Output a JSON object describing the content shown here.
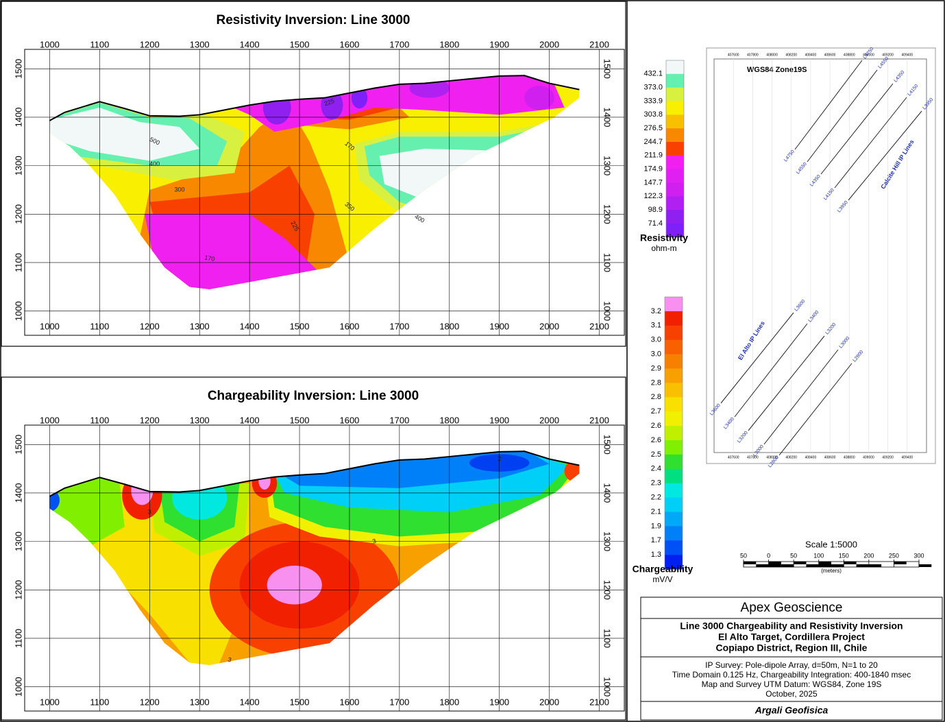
{
  "chart_data": [
    {
      "type": "contour",
      "title": "Resistivity Inversion: Line 3000",
      "xlim": [
        950,
        2150
      ],
      "ylim": [
        950,
        1540
      ],
      "xticks": [
        1000,
        1100,
        1200,
        1300,
        1400,
        1500,
        1600,
        1700,
        1800,
        1900,
        2000,
        2100
      ],
      "yticks": [
        1000,
        1100,
        1200,
        1300,
        1400,
        1500
      ],
      "grid": true,
      "contour_labels": [
        500,
        400,
        300,
        170,
        225,
        350,
        400,
        225,
        170
      ],
      "colorbar": {
        "title": "Resistivity",
        "units": "ohm-m",
        "colors": [
          "#f2f8f8",
          "#66f0b0",
          "#d8f040",
          "#f8f000",
          "#f8c000",
          "#f88800",
          "#f84000",
          "#f020f0",
          "#e020f0",
          "#d020f0",
          "#b020f0",
          "#9020f0",
          "#8020f8"
        ],
        "ticks": [
          432.1,
          {
            "value": 373,
            "label": "373.0"
          },
          333.9,
          303.8,
          276.5,
          244.7,
          211.9,
          174.9,
          147.7,
          122.3,
          98.9,
          71.4
        ]
      }
    },
    {
      "type": "contour",
      "title": "Chargeability Inversion: Line 3000",
      "xlim": [
        950,
        2150
      ],
      "ylim": [
        950,
        1540
      ],
      "xticks": [
        1000,
        1100,
        1200,
        1300,
        1400,
        1500,
        1600,
        1700,
        1800,
        1900,
        2000,
        2100
      ],
      "yticks": [
        1000,
        1100,
        1200,
        1300,
        1400,
        1500
      ],
      "grid": true,
      "contour_labels": [
        3,
        2,
        3,
        3
      ],
      "colorbar": {
        "title": "Chargeability",
        "units": "mV/V",
        "colors": [
          "#f890f0",
          "#f02000",
          "#f84000",
          "#f86000",
          "#f88000",
          "#f8a000",
          "#f8c000",
          "#f8e000",
          "#f0f000",
          "#c0f000",
          "#80f000",
          "#30e030",
          "#00e080",
          "#00e8e0",
          "#00d0f8",
          "#00a8f8",
          "#0080f8",
          "#0050f8",
          "#0020f0"
        ],
        "ticks": [
          3.2,
          3.1,
          {
            "value": 3,
            "label": "3.0"
          },
          {
            "value": 3,
            "label": "3.0"
          },
          2.9,
          2.8,
          2.8,
          2.7,
          2.6,
          2.6,
          2.5,
          2.4,
          2.3,
          2.2,
          2.1,
          1.9,
          1.7,
          1.3
        ]
      }
    }
  ],
  "map": {
    "title": "WGS84 Zone19S",
    "xlim": [
      407400,
      409600
    ],
    "xticks": [
      407600,
      407800,
      408000,
      408200,
      408400,
      408600,
      408800,
      409000,
      409200,
      409400
    ],
    "north_lines": [
      "L4750",
      "L4550",
      "L4350",
      "L4150",
      "L3950"
    ],
    "north_group": "Calcite Hill IP Lines",
    "south_lines": [
      "L3600",
      "L3400",
      "L3200",
      "L3000",
      "L2800"
    ],
    "south_group": "El Alto IP Lines"
  },
  "scale_bar": {
    "title": "Scale 1:5000",
    "xlim": [
      -50,
      300
    ],
    "units": "(meters)",
    "ticks": [
      {
        "value": -50,
        "label": "50"
      },
      0,
      50,
      100,
      150,
      200,
      250,
      300
    ]
  },
  "title_block": {
    "company": "Apex Geoscience",
    "title_lines": [
      "Line 3000 Chargeability and Resistivity Inversion",
      "El Alto Target, Cordillera Project",
      "Copiapo District, Region III, Chile"
    ],
    "notes": [
      "IP Survey: Pole-dipole Array, d=50m, N=1 to 20",
      "Time Domain 0.125 Hz, Chargeability Integration: 400-1840 msec",
      "Map and Survey UTM Datum: WGS84, Zone 19S",
      "October, 2025"
    ],
    "credit": "Argali Geofisica"
  }
}
